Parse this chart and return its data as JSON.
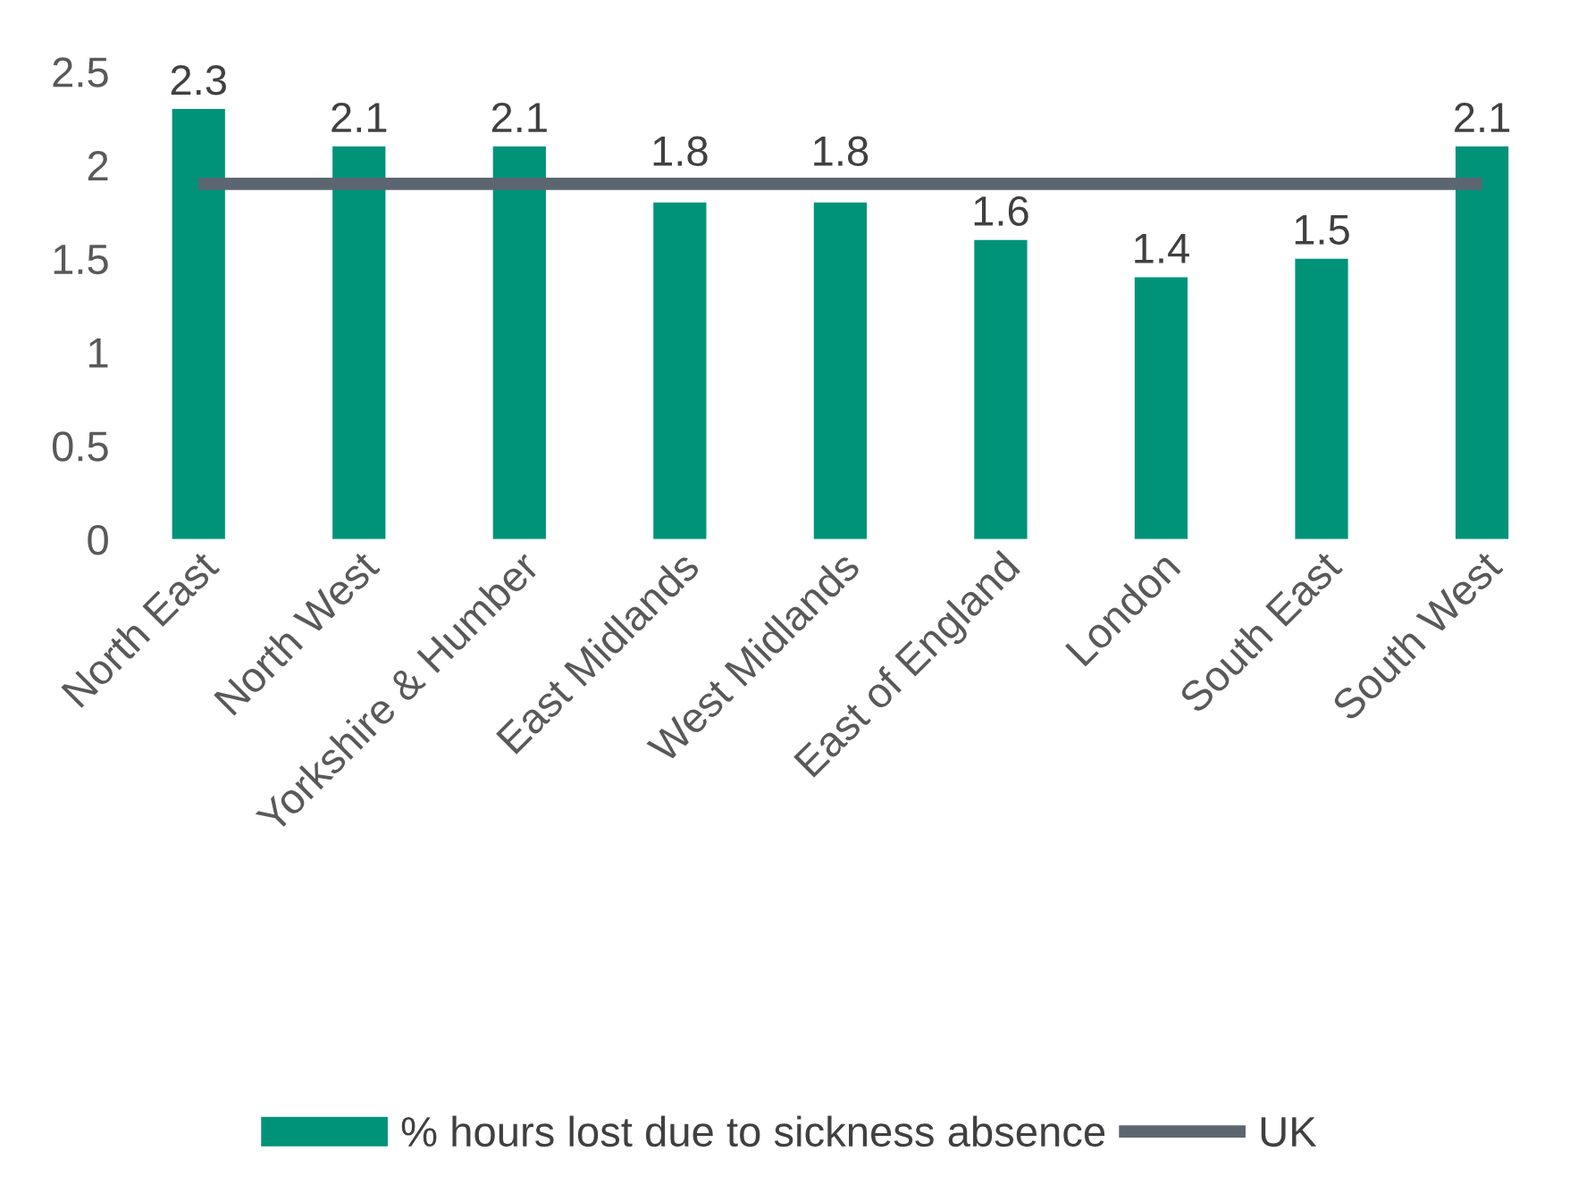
{
  "chart_data": {
    "type": "bar",
    "categories": [
      "North East",
      "North West",
      "Yorkshire & Humber",
      "East Midlands",
      "West Midlands",
      "East of England",
      "London",
      "South East",
      "South West"
    ],
    "series": [
      {
        "name": "% hours lost due to sickness absence",
        "color": "#00937a",
        "values": [
          2.3,
          2.1,
          2.1,
          1.8,
          1.8,
          1.6,
          1.4,
          1.5,
          2.1
        ],
        "value_labels": [
          "2.3",
          "2.1",
          "2.1",
          "1.8",
          "1.8",
          "1.6",
          "1.4",
          "1.5",
          "2.1"
        ]
      },
      {
        "name": "UK",
        "type": "line",
        "color": "#5b6670",
        "values": [
          1.9,
          1.9,
          1.9,
          1.9,
          1.9,
          1.9,
          1.9,
          1.9,
          1.9
        ]
      }
    ],
    "ylim": [
      0,
      2.5
    ],
    "yticks": [
      0,
      0.5,
      1,
      1.5,
      2,
      2.5
    ],
    "grid": false,
    "legend": "bottom"
  }
}
